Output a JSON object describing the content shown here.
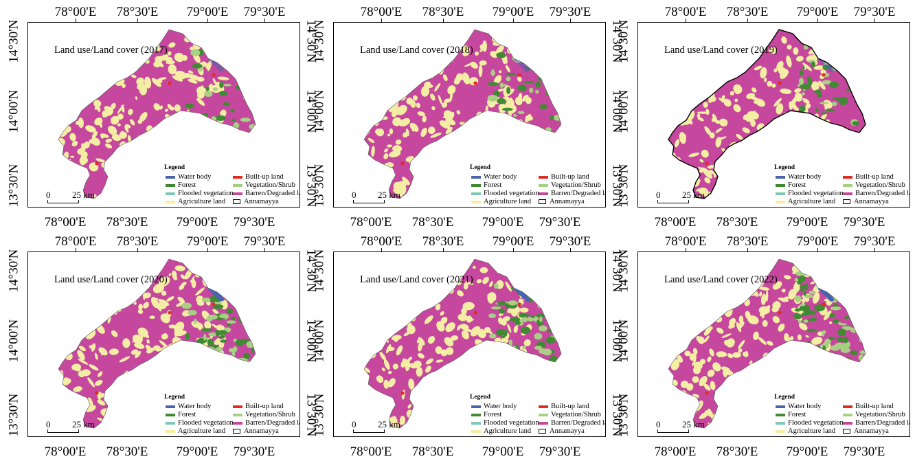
{
  "axes": {
    "lon_labels": [
      "78°00'E",
      "78°30'E",
      "79°00'E",
      "79°30'E"
    ],
    "lat_labels": [
      "14°30'N",
      "14°00'N",
      "13°30'N"
    ]
  },
  "legend": {
    "title": "Legend",
    "items": [
      {
        "label": "Water body",
        "color": "#4a63b0",
        "type": "line"
      },
      {
        "label": "Forest",
        "color": "#3f8a33",
        "type": "line"
      },
      {
        "label": "Flooded vegetation",
        "color": "#7fc6b8",
        "type": "line"
      },
      {
        "label": "Agriculture land",
        "color": "#f4eda4",
        "type": "line"
      },
      {
        "label": "Built-up land",
        "color": "#e02b20",
        "type": "line"
      },
      {
        "label": "Vegetation/Shrub",
        "color": "#a8cf84",
        "type": "line"
      },
      {
        "label": "Barren/Degraded land",
        "color": "#c6479e",
        "type": "line"
      },
      {
        "label": "Annamayya",
        "color": "#000000",
        "type": "box"
      }
    ]
  },
  "scale": {
    "zero": "0",
    "distance": "25 km"
  },
  "colors": {
    "barren": "#c6479e",
    "agriculture": "#f4eda4",
    "forest": "#3f8a33",
    "water": "#4a63b0",
    "builtup": "#e02b20",
    "shrub": "#a8cf84"
  },
  "panels": [
    {
      "title": "Land use/Land cover (2017)"
    },
    {
      "title": "Land use/Land cover (2018)"
    },
    {
      "title": "Land use/Land cover (2019)"
    },
    {
      "title": "Land use/Land cover (2020)"
    },
    {
      "title": "Land use/Land cover (2021)"
    },
    {
      "title": "Land use/Land cover (2022)"
    }
  ]
}
